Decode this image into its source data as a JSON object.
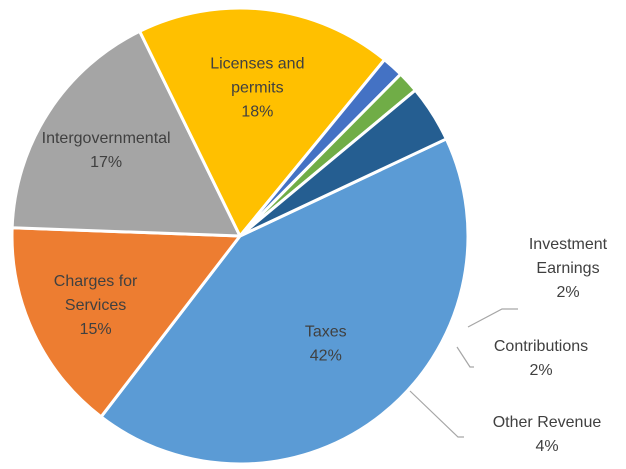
{
  "chart_data": {
    "type": "pie",
    "title": "",
    "slices": [
      {
        "label": "Taxes",
        "value": 42,
        "value_label": "42%",
        "color": "#5b9bd5",
        "label_lines": [
          "Taxes"
        ],
        "label_position": "inside"
      },
      {
        "label": "Charges for Services",
        "value": 15,
        "value_label": "15%",
        "color": "#ed7d31",
        "label_lines": [
          "Charges for",
          "Services"
        ],
        "label_position": "inside"
      },
      {
        "label": "Intergovernmental",
        "value": 17,
        "value_label": "17%",
        "color": "#a5a5a5",
        "label_lines": [
          "Intergovernmental"
        ],
        "label_position": "inside"
      },
      {
        "label": "Licenses and permits",
        "value": 18,
        "value_label": "18%",
        "color": "#ffc000",
        "label_lines": [
          "Licenses and",
          "permits"
        ],
        "label_position": "inside"
      },
      {
        "label": "Investment Earnings",
        "value": 1.5,
        "value_label": "2%",
        "color": "#4472c4",
        "label_lines": [
          "Investment",
          "Earnings"
        ],
        "label_position": "outside"
      },
      {
        "label": "Contributions",
        "value": 1.5,
        "value_label": "2%",
        "color": "#70ad47",
        "label_lines": [
          "Contributions"
        ],
        "label_position": "outside"
      },
      {
        "label": "Other Revenue",
        "value": 4,
        "value_label": "4%",
        "color": "#255e91",
        "label_lines": [
          "Other Revenue"
        ],
        "label_position": "outside"
      }
    ],
    "legend": "none",
    "data_labels": "category and percentage"
  }
}
